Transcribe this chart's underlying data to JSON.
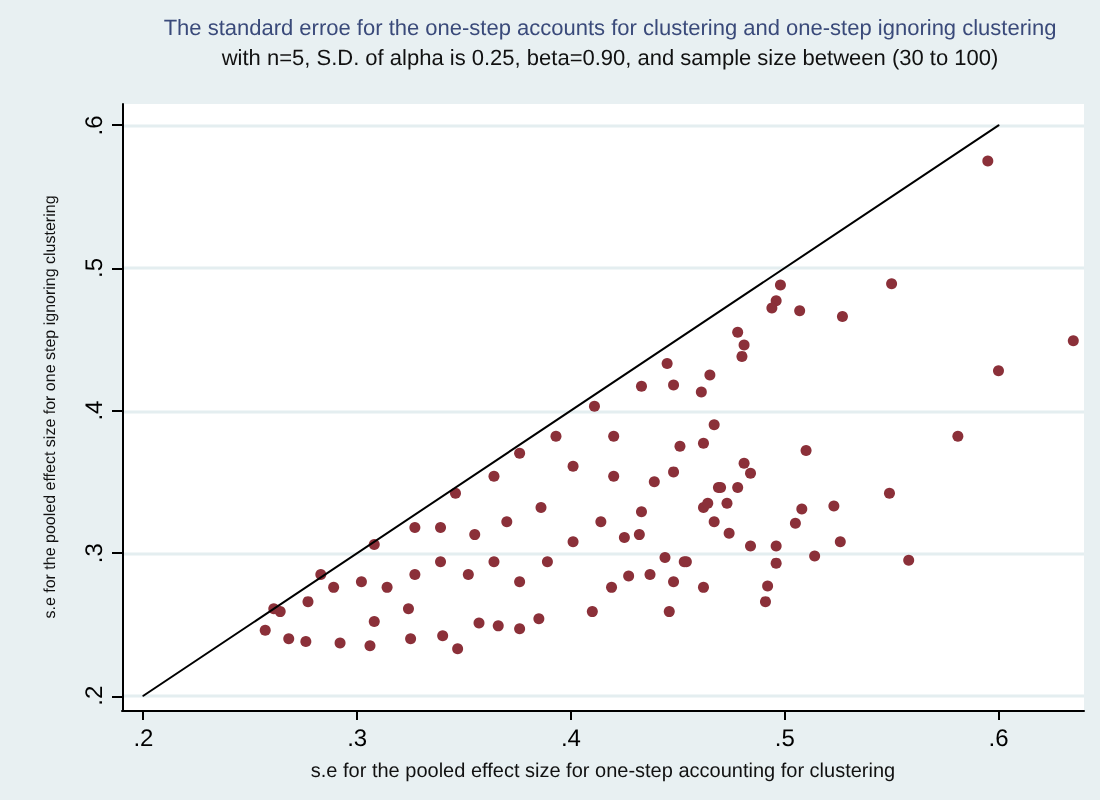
{
  "chart_data": {
    "type": "scatter",
    "title": "The standard erroe for the one-step accounts for clustering and one-step ignoring clustering",
    "subtitle": "with n=5, S.D. of alpha is 0.25, beta=0.90, and sample size between (30 to 100)",
    "xlabel": "s.e for the pooled effect size for one-step accounting for clustering",
    "ylabel": "s.e for the pooled effect size for one step ignoring clustering",
    "xlim": [
      0.19,
      0.64
    ],
    "ylim": [
      0.19,
      0.615
    ],
    "xticks": [
      {
        "value": 0.2,
        "label": ".2"
      },
      {
        "value": 0.3,
        "label": ".3"
      },
      {
        "value": 0.4,
        "label": ".4"
      },
      {
        "value": 0.5,
        "label": ".5"
      },
      {
        "value": 0.6,
        "label": ".6"
      }
    ],
    "yticks": [
      {
        "value": 0.2,
        "label": ".2"
      },
      {
        "value": 0.3,
        "label": ".3"
      },
      {
        "value": 0.4,
        "label": ".4"
      },
      {
        "value": 0.5,
        "label": ".5"
      },
      {
        "value": 0.6,
        "label": ".6"
      }
    ],
    "grid": "y",
    "marker": "circle",
    "series": [
      {
        "color": "#8b3039",
        "x": [
          0.595,
          0.55,
          0.498,
          0.496,
          0.494,
          0.507,
          0.527,
          0.635,
          0.6,
          0.478,
          0.481,
          0.48,
          0.581,
          0.51,
          0.549,
          0.484,
          0.481,
          0.478,
          0.508,
          0.505,
          0.523,
          0.526,
          0.514,
          0.558,
          0.496,
          0.496,
          0.492,
          0.491,
          0.484,
          0.462,
          0.446,
          0.467,
          0.465,
          0.461,
          0.448,
          0.473,
          0.462,
          0.454,
          0.469,
          0.257,
          0.268,
          0.276,
          0.292,
          0.306,
          0.325,
          0.34,
          0.347,
          0.357,
          0.366,
          0.376,
          0.385,
          0.41,
          0.419,
          0.427,
          0.437,
          0.448,
          0.444,
          0.453,
          0.474,
          0.467,
          0.464,
          0.47,
          0.462,
          0.451,
          0.439,
          0.433,
          0.425,
          0.414,
          0.401,
          0.389,
          0.376,
          0.364,
          0.352,
          0.339,
          0.327,
          0.314,
          0.302,
          0.289,
          0.277,
          0.264,
          0.324,
          0.308,
          0.261,
          0.283,
          0.308,
          0.327,
          0.346,
          0.364,
          0.376,
          0.393,
          0.411,
          0.433,
          0.445,
          0.42,
          0.401,
          0.386,
          0.37,
          0.355,
          0.339,
          0.432,
          0.448,
          0.42
        ],
        "values": [
          0.575,
          0.489,
          0.488,
          0.477,
          0.472,
          0.47,
          0.466,
          0.449,
          0.428,
          0.455,
          0.446,
          0.438,
          0.382,
          0.372,
          0.342,
          0.356,
          0.363,
          0.346,
          0.331,
          0.321,
          0.333,
          0.308,
          0.298,
          0.295,
          0.305,
          0.293,
          0.277,
          0.266,
          0.305,
          0.276,
          0.259,
          0.39,
          0.425,
          0.413,
          0.418,
          0.335,
          0.332,
          0.294,
          0.346,
          0.246,
          0.24,
          0.238,
          0.237,
          0.235,
          0.24,
          0.242,
          0.233,
          0.251,
          0.249,
          0.247,
          0.254,
          0.259,
          0.276,
          0.284,
          0.285,
          0.28,
          0.297,
          0.294,
          0.314,
          0.322,
          0.335,
          0.346,
          0.377,
          0.375,
          0.35,
          0.329,
          0.311,
          0.322,
          0.308,
          0.294,
          0.28,
          0.294,
          0.285,
          0.294,
          0.285,
          0.276,
          0.28,
          0.276,
          0.266,
          0.259,
          0.261,
          0.252,
          0.261,
          0.285,
          0.306,
          0.318,
          0.342,
          0.354,
          0.37,
          0.382,
          0.403,
          0.417,
          0.433,
          0.382,
          0.361,
          0.332,
          0.322,
          0.313,
          0.318,
          0.313,
          0.357,
          0.354
        ]
      },
      {
        "type": "line",
        "color": "#000000",
        "marker": "none",
        "x": [
          0.2,
          0.6
        ],
        "values": [
          0.2,
          0.6
        ]
      }
    ]
  }
}
